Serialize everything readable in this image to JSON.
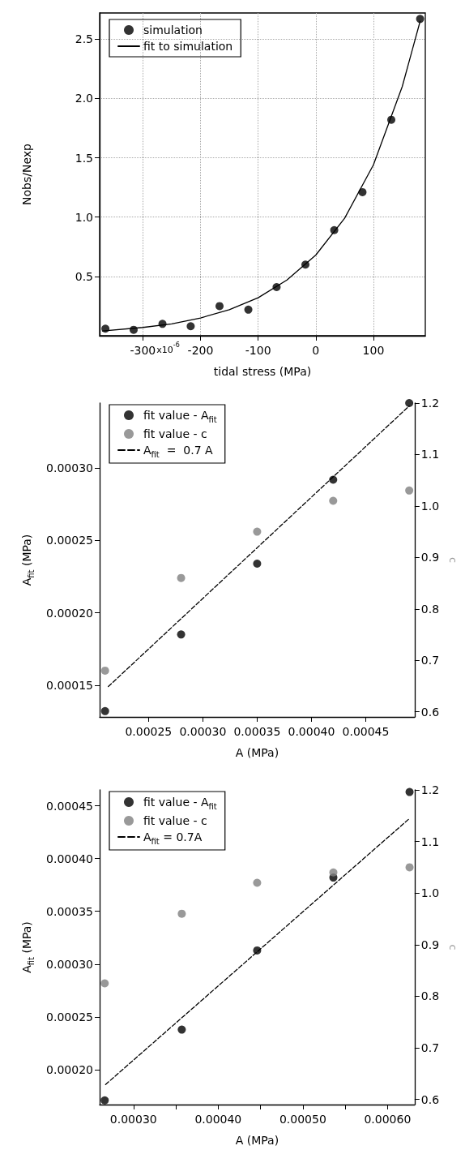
{
  "chart_data": [
    {
      "type": "scatter",
      "xlabel": "tidal stress (MPa)",
      "ylabel": "Nobs/Nexp",
      "xlim": [
        -375,
        190
      ],
      "ylim": [
        0,
        2.72
      ],
      "xticks": [
        -300,
        -200,
        -100,
        0,
        100
      ],
      "annotations": [
        "x10$^{-6}$"
      ],
      "yticks": [
        0.5,
        {
          "value": 1.0,
          "label": "1.0"
        },
        1.5,
        {
          "value": 2.0,
          "label": "2.0"
        },
        2.5
      ],
      "grid": true,
      "legend": "top left",
      "marker": "circle",
      "series": [
        {
          "name": "simulation",
          "color": "#000000",
          "x": [
            -365,
            -316,
            -266,
            -217,
            -167,
            -117,
            -68,
            -18,
            32,
            81,
            131,
            181
          ],
          "values": [
            0.06,
            0.05,
            0.1,
            0.08,
            0.25,
            0.22,
            0.41,
            0.6,
            0.89,
            1.21,
            1.82,
            2.67
          ]
        },
        {
          "name": "fit to simulation",
          "type": "line",
          "color": "#000000",
          "marker": "none",
          "line_style": "solid",
          "x": [
            -370,
            -300,
            -250,
            -200,
            -150,
            -100,
            -50,
            0,
            50,
            100,
            150,
            181
          ],
          "values": [
            0.04,
            0.07,
            0.1,
            0.15,
            0.22,
            0.32,
            0.47,
            0.68,
            0.99,
            1.44,
            2.1,
            2.65
          ]
        }
      ]
    },
    {
      "type": "scatter",
      "xlabel": "A (MPa)",
      "ylabel": "A$_{fit}$ (MPa)",
      "y2label": "c",
      "xlim": [
        0.000205,
        0.000495
      ],
      "ylim": [
        0.000128,
        0.000345
      ],
      "y2lim": [
        0.59,
        1.2
      ],
      "xticks": [
        0.00025,
        {
          "value": 0.0003,
          "label": "0.00030"
        },
        0.00035,
        {
          "value": 0.0004,
          "label": "0.00040"
        },
        0.00045
      ],
      "yticks": [
        0.00015,
        {
          "value": 0.0002,
          "label": "0.00020"
        },
        0.00025,
        {
          "value": 0.0003,
          "label": "0.00030"
        }
      ],
      "y2ticks": [
        0.6,
        0.7,
        0.8,
        0.9,
        {
          "value": 1.0,
          "label": "1.0"
        },
        1.1,
        1.2
      ],
      "grid": false,
      "legend": "top left",
      "marker": "circle",
      "series": [
        {
          "name": "fit value - A$_{fit}$",
          "color": "#000000",
          "x": [
            0.00021,
            0.00028,
            0.00035,
            0.00042,
            0.00049
          ],
          "values": [
            0.000132,
            0.000185,
            0.000234,
            0.000292,
            0.000345
          ]
        },
        {
          "name": "fit value - c",
          "color": "#808080",
          "axis": "y2",
          "x": [
            0.00021,
            0.00028,
            0.00035,
            0.00042,
            0.00049
          ],
          "values": [
            0.68,
            0.86,
            0.95,
            1.01,
            1.03
          ]
        },
        {
          "name": "A$_{fit}$  =  0.7 A",
          "type": "line",
          "color": "#000000",
          "marker": "none",
          "line_style": "dashed",
          "x": [
            0.000213,
            0.00049
          ],
          "values": [
            0.000149,
            0.000343
          ]
        }
      ]
    },
    {
      "type": "scatter",
      "xlabel": "A (MPa)",
      "ylabel": "A$_{fit}$ (MPa)",
      "y2label": "c",
      "xlim": [
        0.00026,
        0.000632
      ],
      "ylim": [
        0.000167,
        0.000465
      ],
      "y2lim": [
        0.59,
        1.2
      ],
      "xticks": [
        {
          "value": 0.0003,
          "label": "0.00030"
        },
        {
          "value": 0.00035,
          "label": null
        },
        {
          "value": 0.0004,
          "label": "0.00040"
        },
        {
          "value": 0.00045,
          "label": null
        },
        {
          "value": 0.0005,
          "label": "0.00050"
        },
        {
          "value": 0.00055,
          "label": null
        },
        {
          "value": 0.0006,
          "label": "0.00060"
        }
      ],
      "yticks": [
        {
          "value": 0.0002,
          "label": "0.00020"
        },
        0.00025,
        {
          "value": 0.0003,
          "label": "0.00030"
        },
        0.00035,
        {
          "value": 0.0004,
          "label": "0.00040"
        },
        0.00045
      ],
      "y2ticks": [
        0.6,
        0.7,
        0.8,
        0.9,
        {
          "value": 1.0,
          "label": "1.0"
        },
        1.1,
        1.2
      ],
      "grid": false,
      "legend": "top left",
      "marker": "circle",
      "series": [
        {
          "name": "fit value - A$_{fit}$",
          "color": "#000000",
          "x": [
            0.000266,
            0.000357,
            0.000446,
            0.000536,
            0.000626
          ],
          "values": [
            0.000171,
            0.000238,
            0.000313,
            0.000382,
            0.000463
          ]
        },
        {
          "name": "fit value - c",
          "color": "#808080",
          "axis": "y2",
          "x": [
            0.000266,
            0.000357,
            0.000446,
            0.000536,
            0.000626
          ],
          "values": [
            0.825,
            0.96,
            1.02,
            1.04,
            1.05
          ]
        },
        {
          "name": "A$_{fit}$ = 0.7A",
          "type": "line",
          "color": "#000000",
          "marker": "none",
          "line_style": "dashed",
          "x": [
            0.000267,
            0.000626
          ],
          "values": [
            0.000186,
            0.000438
          ]
        }
      ]
    }
  ]
}
